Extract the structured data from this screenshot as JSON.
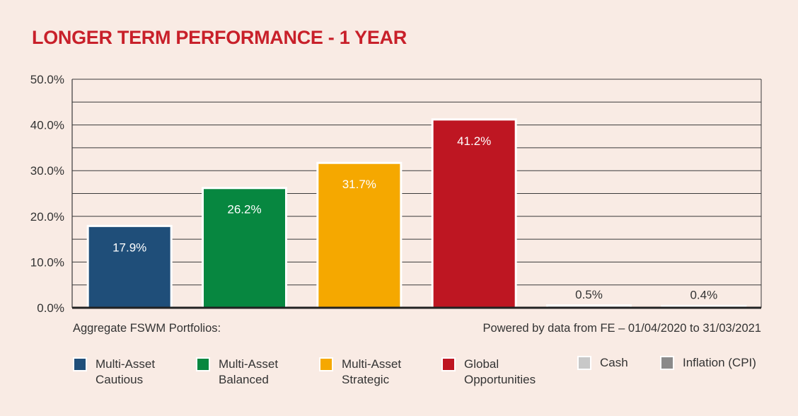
{
  "title": "LONGER TERM PERFORMANCE - 1 YEAR",
  "footer": {
    "left": "Aggregate FSWM Portfolios:",
    "right": "Powered by data from FE – 01/04/2020 to 31/03/2021"
  },
  "chart_data": {
    "type": "bar",
    "title": "LONGER TERM PERFORMANCE - 1 YEAR",
    "categories": [
      "Multi-Asset Cautious",
      "Multi-Asset Balanced",
      "Multi-Asset Strategic",
      "Global Opportunities",
      "Cash",
      "Inflation (CPI)"
    ],
    "values": [
      17.9,
      26.2,
      31.7,
      41.2,
      0.5,
      0.4
    ],
    "value_labels": [
      "17.9%",
      "26.2%",
      "31.7%",
      "41.2%",
      "0.5%",
      "0.4%"
    ],
    "colors": [
      "#1f4e79",
      "#078740",
      "#f5a800",
      "#be1622",
      "#c8c8c8",
      "#8a8a8a"
    ],
    "ylim": [
      0,
      50
    ],
    "yticks": [
      0,
      10,
      20,
      30,
      40,
      50
    ],
    "ytick_labels": [
      "0.0%",
      "10.0%",
      "20.0%",
      "30.0%",
      "40.0%",
      "50.0%"
    ],
    "minor_gridlines": true,
    "grid": true,
    "legend": "bottom",
    "xlabel": "",
    "ylabel": ""
  },
  "legend": [
    {
      "label": "Multi-Asset\nCautious",
      "color": "#1f4e79"
    },
    {
      "label": "Multi-Asset\nBalanced",
      "color": "#078740"
    },
    {
      "label": "Multi-Asset\nStrategic",
      "color": "#f5a800"
    },
    {
      "label": "Global\nOpportunities",
      "color": "#be1622"
    },
    {
      "label": "Cash",
      "color": "#c8c8c8"
    },
    {
      "label": "Inflation (CPI)",
      "color": "#8a8a8a"
    }
  ]
}
